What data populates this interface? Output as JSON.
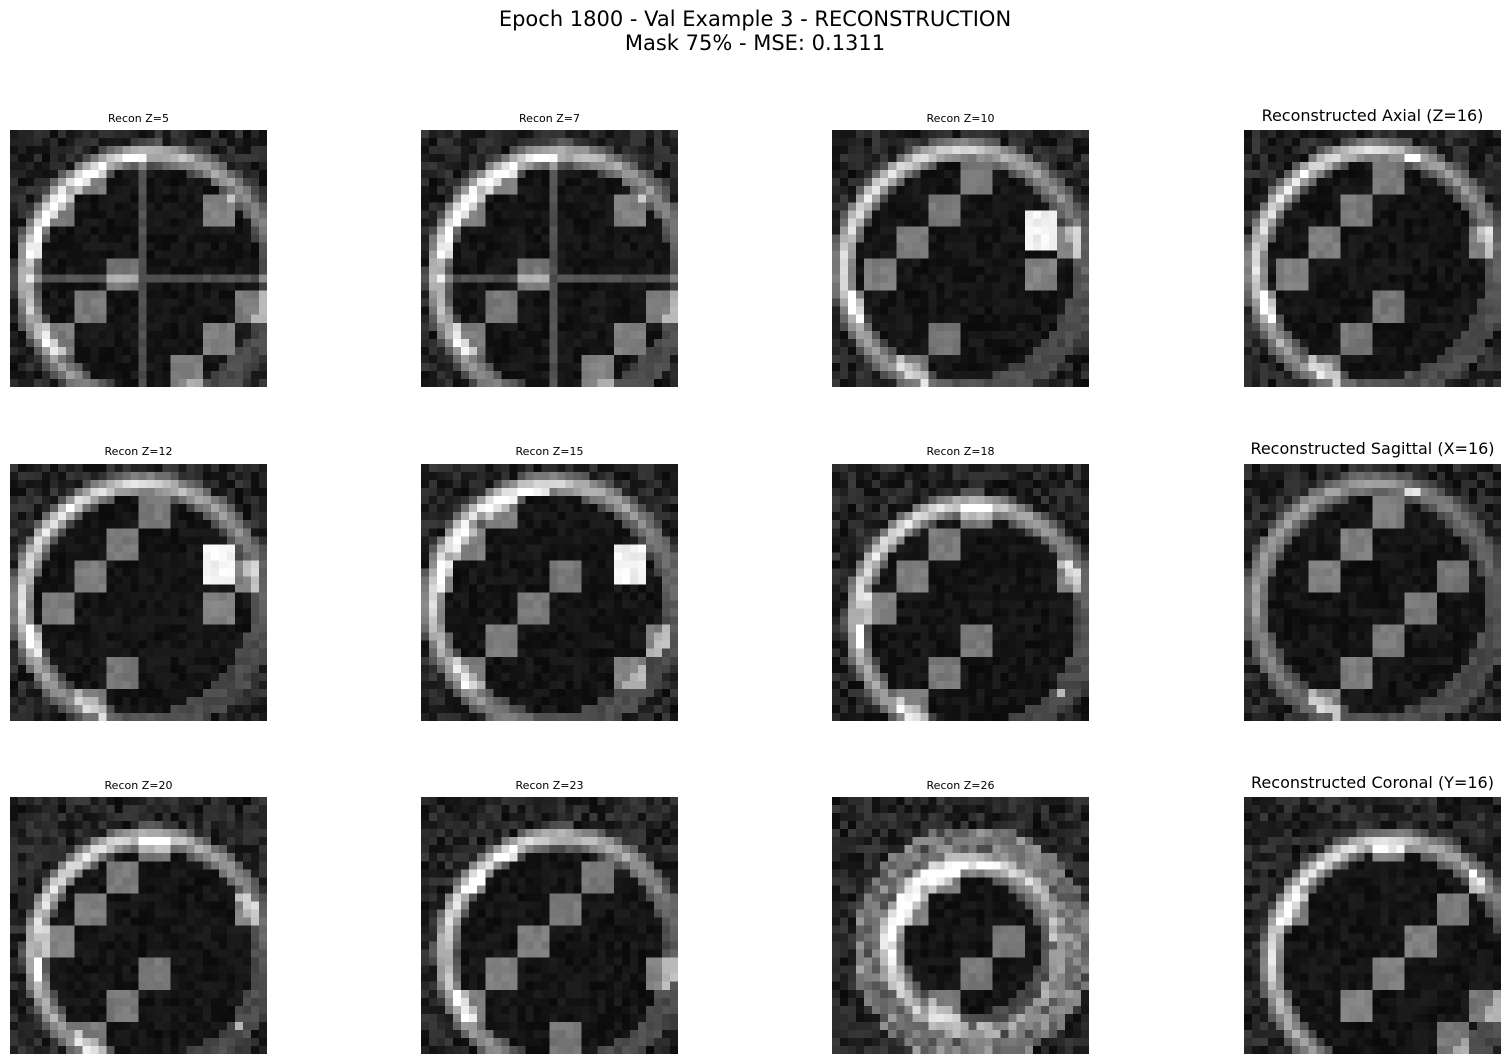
{
  "figure": {
    "title_line_1": "Epoch 1800 - Val Example 3 - RECONSTRUCTION",
    "title_line_2": "Mask 75% - MSE: 0.1311"
  },
  "panels": [
    {
      "title": "Recon Z=5",
      "style": "small",
      "seed": 5,
      "view": "axial-upper"
    },
    {
      "title": "Recon Z=7",
      "style": "small",
      "seed": 7,
      "view": "axial-upper"
    },
    {
      "title": "Recon Z=10",
      "style": "small",
      "seed": 10,
      "view": "axial-mid"
    },
    {
      "title": "Reconstructed Axial (Z=16)",
      "style": "large",
      "seed": 16,
      "view": "axial-center"
    },
    {
      "title": "Recon Z=12",
      "style": "small",
      "seed": 12,
      "view": "axial-mid"
    },
    {
      "title": "Recon Z=15",
      "style": "small",
      "seed": 15,
      "view": "axial-mid"
    },
    {
      "title": "Recon Z=18",
      "style": "small",
      "seed": 18,
      "view": "axial-lower"
    },
    {
      "title": "Reconstructed Sagittal (X=16)",
      "style": "large",
      "seed": 32,
      "view": "sagittal"
    },
    {
      "title": "Recon Z=20",
      "style": "small",
      "seed": 20,
      "view": "axial-lower"
    },
    {
      "title": "Recon Z=23",
      "style": "small",
      "seed": 23,
      "view": "axial-lower"
    },
    {
      "title": "Recon Z=26",
      "style": "small",
      "seed": 26,
      "view": "axial-bottom"
    },
    {
      "title": "Reconstructed Coronal (Y=16)",
      "style": "large",
      "seed": 48,
      "view": "coronal"
    }
  ],
  "colormap": "gray"
}
